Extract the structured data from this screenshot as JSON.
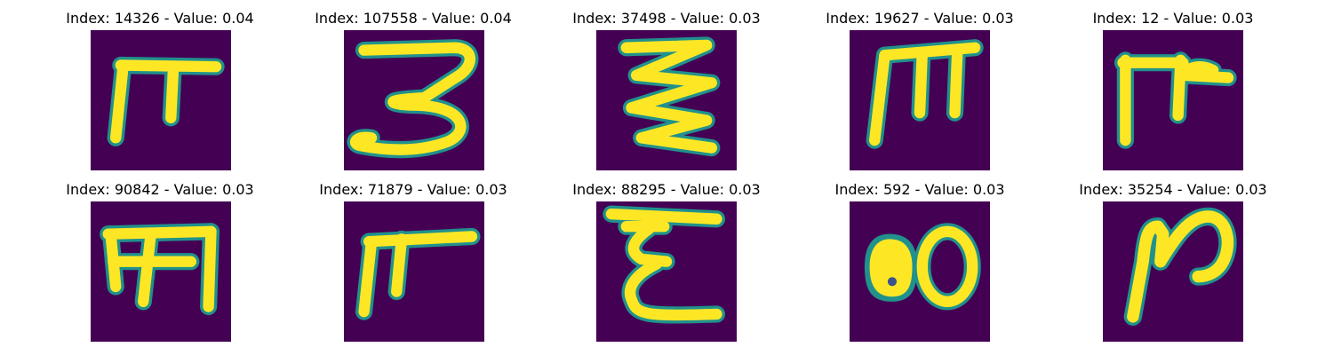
{
  "colors": {
    "background": "#440154",
    "stroke_mid": "#21918c",
    "stroke_core": "#fde725",
    "stroke_edge": "#3b528b"
  },
  "panels": [
    {
      "title": "Index: 14326 - Value: 0.04"
    },
    {
      "title": "Index: 107558 - Value: 0.04"
    },
    {
      "title": "Index: 37498 - Value: 0.03"
    },
    {
      "title": "Index: 19627 - Value: 0.03"
    },
    {
      "title": "Index: 12 - Value: 0.03"
    },
    {
      "title": "Index: 90842 - Value: 0.03"
    },
    {
      "title": "Index: 71879 - Value: 0.03"
    },
    {
      "title": "Index: 88295 - Value: 0.03"
    },
    {
      "title": "Index: 592 - Value: 0.03"
    },
    {
      "title": "Index: 35254 - Value: 0.03"
    }
  ]
}
